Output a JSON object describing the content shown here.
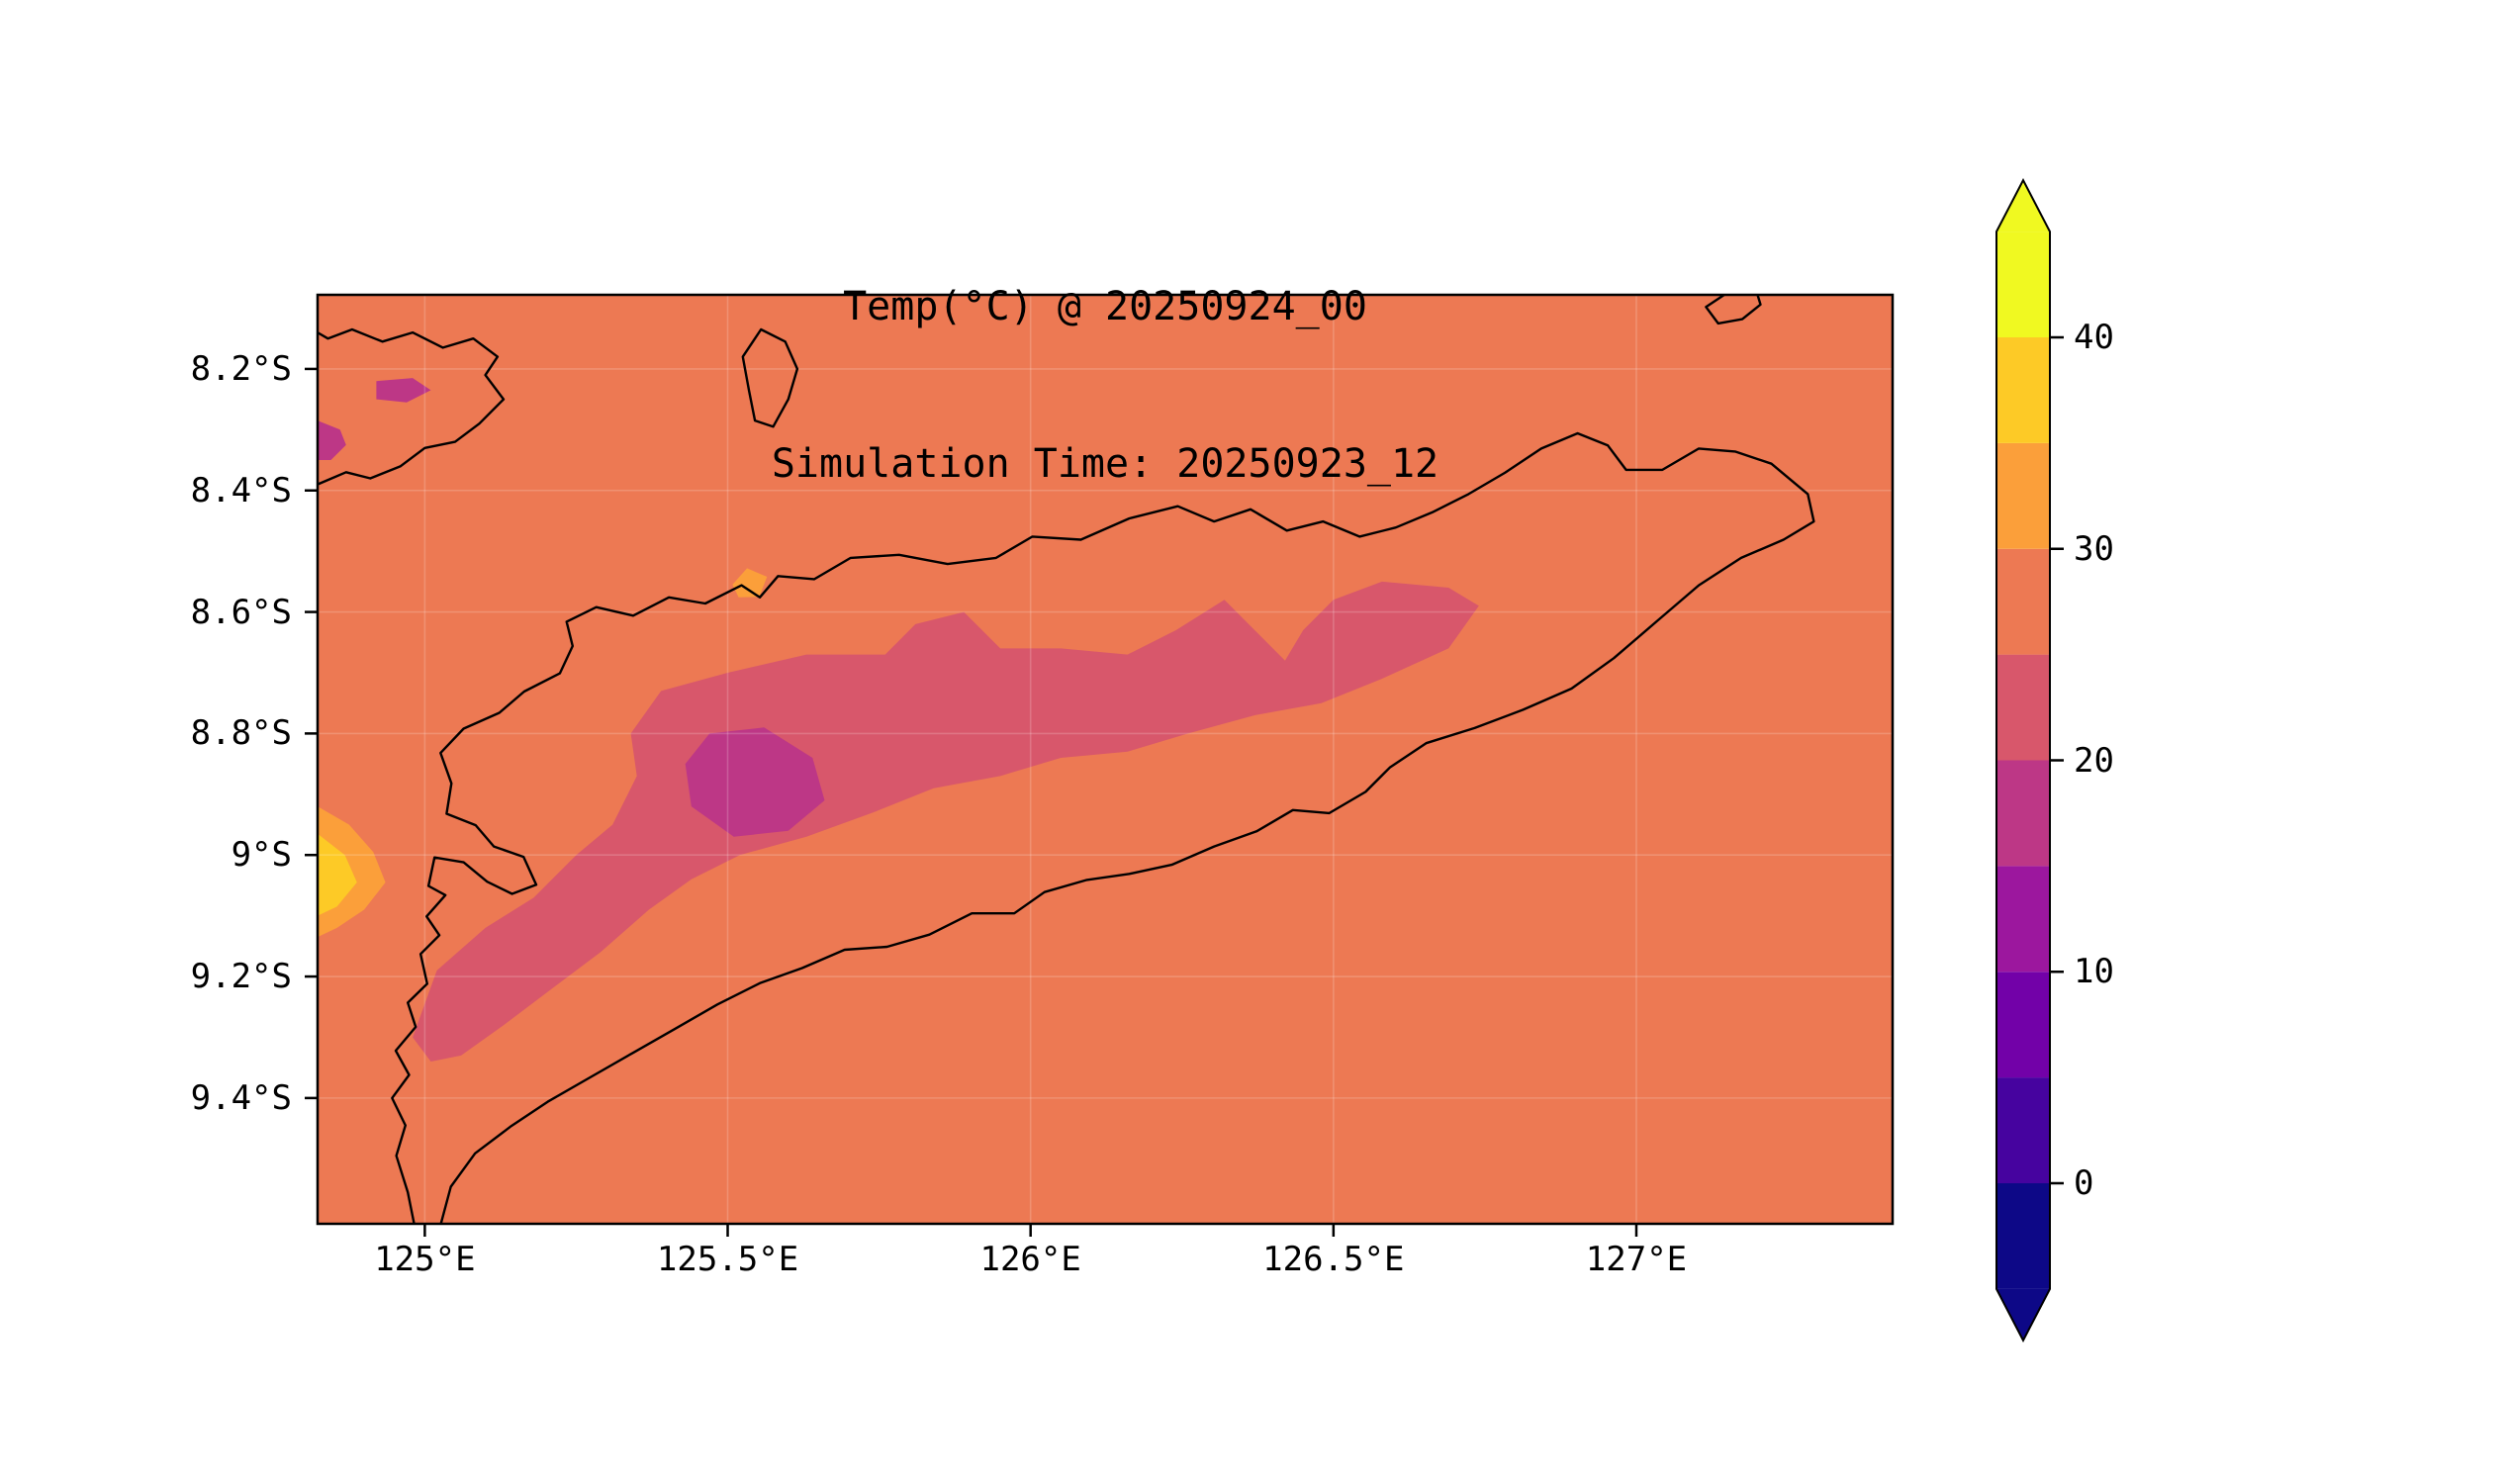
{
  "title": {
    "line1": "Temp(°C) @ 20250924_00",
    "line2": "Simulation Time: 20250923_12"
  },
  "chart_data": {
    "type": "heatmap",
    "variable": "Temp(°C)",
    "valid_time": "20250924_00",
    "simulation_time": "20250923_12",
    "grid": true,
    "x_axis": {
      "range": [
        124.823,
        127.423
      ],
      "ticks": [
        {
          "value": 125.0,
          "label": "125°E"
        },
        {
          "value": 125.5,
          "label": "125.5°E"
        },
        {
          "value": 126.0,
          "label": "126°E"
        },
        {
          "value": 126.5,
          "label": "126.5°E"
        },
        {
          "value": 127.0,
          "label": "127°E"
        }
      ]
    },
    "y_axis": {
      "range": [
        -9.607,
        -8.078
      ],
      "ticks": [
        {
          "value": -8.2,
          "label": "8.2°S"
        },
        {
          "value": -8.4,
          "label": "8.4°S"
        },
        {
          "value": -8.6,
          "label": "8.6°S"
        },
        {
          "value": -8.8,
          "label": "8.8°S"
        },
        {
          "value": -9.0,
          "label": "9°S"
        },
        {
          "value": -9.2,
          "label": "9.2°S"
        },
        {
          "value": -9.4,
          "label": "9.4°S"
        }
      ]
    },
    "colorbar": {
      "range": [
        -5,
        45
      ],
      "ticks": [
        {
          "value": 40,
          "label": "40"
        },
        {
          "value": 30,
          "label": "30"
        },
        {
          "value": 20,
          "label": "20"
        },
        {
          "value": 10,
          "label": "10"
        },
        {
          "value": 0,
          "label": "0"
        }
      ],
      "bands": [
        {
          "from": -5,
          "to": 0,
          "color": "#0d0887"
        },
        {
          "from": 0,
          "to": 5,
          "color": "#46039f"
        },
        {
          "from": 5,
          "to": 10,
          "color": "#7201a8"
        },
        {
          "from": 10,
          "to": 15,
          "color": "#9c179e"
        },
        {
          "from": 15,
          "to": 20,
          "color": "#bd3786"
        },
        {
          "from": 20,
          "to": 25,
          "color": "#d8576b"
        },
        {
          "from": 25,
          "to": 30,
          "color": "#ed7953"
        },
        {
          "from": 30,
          "to": 35,
          "color": "#fb9f3a"
        },
        {
          "from": 35,
          "to": 40,
          "color": "#fdca26"
        },
        {
          "from": 40,
          "to": 45,
          "color": "#f0f921"
        }
      ],
      "under_color": "#0d0887",
      "over_color": "#f0f921"
    },
    "background_band": {
      "from": 25,
      "to": 30,
      "color": "#ed7953"
    },
    "grid_color": "rgba(255,255,255,0.18)",
    "regions": [
      {
        "name": "central-ridge-cool",
        "band": [
          20,
          25
        ],
        "color": "#d8576b",
        "polygon": [
          [
            124.98,
            -9.3
          ],
          [
            125.02,
            -9.19
          ],
          [
            125.1,
            -9.12
          ],
          [
            125.18,
            -9.07
          ],
          [
            125.25,
            -9.0
          ],
          [
            125.31,
            -8.95
          ],
          [
            125.35,
            -8.87
          ],
          [
            125.34,
            -8.8
          ],
          [
            125.39,
            -8.73
          ],
          [
            125.5,
            -8.7
          ],
          [
            125.63,
            -8.67
          ],
          [
            125.76,
            -8.67
          ],
          [
            125.81,
            -8.62
          ],
          [
            125.89,
            -8.6
          ],
          [
            125.95,
            -8.66
          ],
          [
            126.05,
            -8.66
          ],
          [
            126.16,
            -8.67
          ],
          [
            126.24,
            -8.63
          ],
          [
            126.32,
            -8.58
          ],
          [
            126.37,
            -8.63
          ],
          [
            126.42,
            -8.68
          ],
          [
            126.45,
            -8.63
          ],
          [
            126.5,
            -8.58
          ],
          [
            126.58,
            -8.55
          ],
          [
            126.69,
            -8.56
          ],
          [
            126.74,
            -8.59
          ],
          [
            126.69,
            -8.66
          ],
          [
            126.58,
            -8.71
          ],
          [
            126.48,
            -8.75
          ],
          [
            126.37,
            -8.77
          ],
          [
            126.26,
            -8.8
          ],
          [
            126.16,
            -8.83
          ],
          [
            126.05,
            -8.84
          ],
          [
            125.95,
            -8.87
          ],
          [
            125.84,
            -8.89
          ],
          [
            125.74,
            -8.93
          ],
          [
            125.63,
            -8.97
          ],
          [
            125.52,
            -9.0
          ],
          [
            125.44,
            -9.04
          ],
          [
            125.37,
            -9.09
          ],
          [
            125.29,
            -9.16
          ],
          [
            125.21,
            -9.22
          ],
          [
            125.13,
            -9.28
          ],
          [
            125.06,
            -9.33
          ],
          [
            125.01,
            -9.34
          ]
        ]
      },
      {
        "name": "mountain-core-cold",
        "band": [
          15,
          20
        ],
        "color": "#bd3786",
        "polygon": [
          [
            125.47,
            -8.8
          ],
          [
            125.56,
            -8.79
          ],
          [
            125.64,
            -8.84
          ],
          [
            125.66,
            -8.91
          ],
          [
            125.6,
            -8.96
          ],
          [
            125.51,
            -8.97
          ],
          [
            125.44,
            -8.92
          ],
          [
            125.43,
            -8.85
          ]
        ]
      },
      {
        "name": "alor-cool-spot",
        "band": [
          15,
          20
        ],
        "color": "#bd3786",
        "polygon": [
          [
            124.92,
            -8.22
          ],
          [
            124.98,
            -8.215
          ],
          [
            125.01,
            -8.235
          ],
          [
            124.97,
            -8.255
          ],
          [
            124.92,
            -8.25
          ]
        ]
      },
      {
        "name": "west-edge-cool-spot",
        "band": [
          15,
          20
        ],
        "color": "#bd3786",
        "polygon": [
          [
            124.823,
            -8.285
          ],
          [
            124.86,
            -8.3
          ],
          [
            124.87,
            -8.325
          ],
          [
            124.845,
            -8.35
          ],
          [
            124.823,
            -8.35
          ]
        ]
      },
      {
        "name": "west-coast-warm",
        "band": [
          30,
          35
        ],
        "color": "#fb9f3a",
        "polygon": [
          [
            124.823,
            -8.92
          ],
          [
            124.875,
            -8.95
          ],
          [
            124.915,
            -8.995
          ],
          [
            124.935,
            -9.045
          ],
          [
            124.9,
            -9.09
          ],
          [
            124.855,
            -9.12
          ],
          [
            124.823,
            -9.135
          ]
        ]
      },
      {
        "name": "west-coast-warm-core",
        "band": [
          35,
          40
        ],
        "color": "#fdca26",
        "polygon": [
          [
            124.823,
            -8.965
          ],
          [
            124.868,
            -9.0
          ],
          [
            124.888,
            -9.045
          ],
          [
            124.855,
            -9.085
          ],
          [
            124.823,
            -9.1
          ]
        ]
      },
      {
        "name": "north-coast-warm-dot",
        "band": [
          30,
          35
        ],
        "color": "#fb9f3a",
        "polygon": [
          [
            125.508,
            -8.555
          ],
          [
            125.532,
            -8.528
          ],
          [
            125.565,
            -8.542
          ],
          [
            125.552,
            -8.575
          ],
          [
            125.518,
            -8.576
          ]
        ]
      }
    ],
    "coastlines": [
      {
        "name": "timor-main-island",
        "closed": false,
        "points": [
          [
            124.985,
            -9.62
          ],
          [
            124.972,
            -9.555
          ],
          [
            124.953,
            -9.495
          ],
          [
            124.968,
            -9.445
          ],
          [
            124.946,
            -9.4
          ],
          [
            124.974,
            -9.362
          ],
          [
            124.952,
            -9.322
          ],
          [
            124.985,
            -9.283
          ],
          [
            124.972,
            -9.243
          ],
          [
            125.004,
            -9.212
          ],
          [
            124.993,
            -9.163
          ],
          [
            125.024,
            -9.132
          ],
          [
            125.003,
            -9.101
          ],
          [
            125.034,
            -9.066
          ],
          [
            125.006,
            -9.051
          ],
          [
            125.016,
            -9.004
          ],
          [
            125.064,
            -9.012
          ],
          [
            125.103,
            -9.044
          ],
          [
            125.144,
            -9.064
          ],
          [
            125.184,
            -9.049
          ],
          [
            125.163,
            -9.003
          ],
          [
            125.114,
            -8.986
          ],
          [
            125.084,
            -8.951
          ],
          [
            125.036,
            -8.932
          ],
          [
            125.044,
            -8.882
          ],
          [
            125.026,
            -8.832
          ],
          [
            125.064,
            -8.792
          ],
          [
            125.123,
            -8.766
          ],
          [
            125.164,
            -8.731
          ],
          [
            125.223,
            -8.701
          ],
          [
            125.244,
            -8.656
          ],
          [
            125.234,
            -8.616
          ],
          [
            125.283,
            -8.592
          ],
          [
            125.344,
            -8.606
          ],
          [
            125.403,
            -8.576
          ],
          [
            125.463,
            -8.586
          ],
          [
            125.523,
            -8.556
          ],
          [
            125.553,
            -8.576
          ],
          [
            125.583,
            -8.541
          ],
          [
            125.643,
            -8.546
          ],
          [
            125.703,
            -8.511
          ],
          [
            125.783,
            -8.506
          ],
          [
            125.863,
            -8.521
          ],
          [
            125.943,
            -8.511
          ],
          [
            126.003,
            -8.476
          ],
          [
            126.083,
            -8.481
          ],
          [
            126.163,
            -8.446
          ],
          [
            126.243,
            -8.426
          ],
          [
            126.303,
            -8.451
          ],
          [
            126.363,
            -8.431
          ],
          [
            126.423,
            -8.466
          ],
          [
            126.483,
            -8.451
          ],
          [
            126.543,
            -8.476
          ],
          [
            126.603,
            -8.461
          ],
          [
            126.663,
            -8.436
          ],
          [
            126.723,
            -8.406
          ],
          [
            126.783,
            -8.371
          ],
          [
            126.843,
            -8.331
          ],
          [
            126.903,
            -8.306
          ],
          [
            126.953,
            -8.326
          ],
          [
            126.983,
            -8.366
          ],
          [
            127.043,
            -8.366
          ],
          [
            127.103,
            -8.331
          ],
          [
            127.163,
            -8.336
          ],
          [
            127.223,
            -8.356
          ],
          [
            127.283,
            -8.406
          ],
          [
            127.293,
            -8.451
          ],
          [
            127.243,
            -8.481
          ],
          [
            127.173,
            -8.511
          ],
          [
            127.103,
            -8.556
          ],
          [
            127.033,
            -8.616
          ],
          [
            126.963,
            -8.676
          ],
          [
            126.893,
            -8.726
          ],
          [
            126.813,
            -8.761
          ],
          [
            126.733,
            -8.791
          ],
          [
            126.653,
            -8.816
          ],
          [
            126.593,
            -8.856
          ],
          [
            126.553,
            -8.896
          ],
          [
            126.493,
            -8.931
          ],
          [
            126.433,
            -8.926
          ],
          [
            126.373,
            -8.961
          ],
          [
            126.303,
            -8.986
          ],
          [
            126.233,
            -9.016
          ],
          [
            126.163,
            -9.031
          ],
          [
            126.093,
            -9.041
          ],
          [
            126.023,
            -9.061
          ],
          [
            125.973,
            -9.096
          ],
          [
            125.903,
            -9.096
          ],
          [
            125.833,
            -9.131
          ],
          [
            125.763,
            -9.151
          ],
          [
            125.693,
            -9.156
          ],
          [
            125.623,
            -9.186
          ],
          [
            125.553,
            -9.211
          ],
          [
            125.483,
            -9.246
          ],
          [
            125.413,
            -9.286
          ],
          [
            125.343,
            -9.326
          ],
          [
            125.273,
            -9.366
          ],
          [
            125.203,
            -9.406
          ],
          [
            125.143,
            -9.446
          ],
          [
            125.083,
            -9.491
          ],
          [
            125.043,
            -9.546
          ],
          [
            125.023,
            -9.62
          ]
        ]
      },
      {
        "name": "alor-island-partial",
        "closed": false,
        "points": [
          [
            124.823,
            -8.39
          ],
          [
            124.87,
            -8.37
          ],
          [
            124.91,
            -8.38
          ],
          [
            124.96,
            -8.36
          ],
          [
            125.0,
            -8.33
          ],
          [
            125.05,
            -8.32
          ],
          [
            125.09,
            -8.29
          ],
          [
            125.13,
            -8.25
          ],
          [
            125.1,
            -8.21
          ],
          [
            125.12,
            -8.18
          ],
          [
            125.08,
            -8.15
          ],
          [
            125.03,
            -8.165
          ],
          [
            124.98,
            -8.14
          ],
          [
            124.93,
            -8.155
          ],
          [
            124.88,
            -8.135
          ],
          [
            124.84,
            -8.15
          ],
          [
            124.823,
            -8.14
          ]
        ]
      },
      {
        "name": "atauro-island",
        "closed": true,
        "points": [
          [
            125.555,
            -8.135
          ],
          [
            125.595,
            -8.155
          ],
          [
            125.615,
            -8.2
          ],
          [
            125.6,
            -8.25
          ],
          [
            125.575,
            -8.295
          ],
          [
            125.545,
            -8.285
          ],
          [
            125.535,
            -8.235
          ],
          [
            125.525,
            -8.18
          ]
        ]
      },
      {
        "name": "northeast-islet-partial",
        "closed": false,
        "points": [
          [
            127.145,
            -8.078
          ],
          [
            127.115,
            -8.098
          ],
          [
            127.135,
            -8.125
          ],
          [
            127.175,
            -8.118
          ],
          [
            127.205,
            -8.094
          ],
          [
            127.2,
            -8.078
          ]
        ]
      }
    ]
  }
}
